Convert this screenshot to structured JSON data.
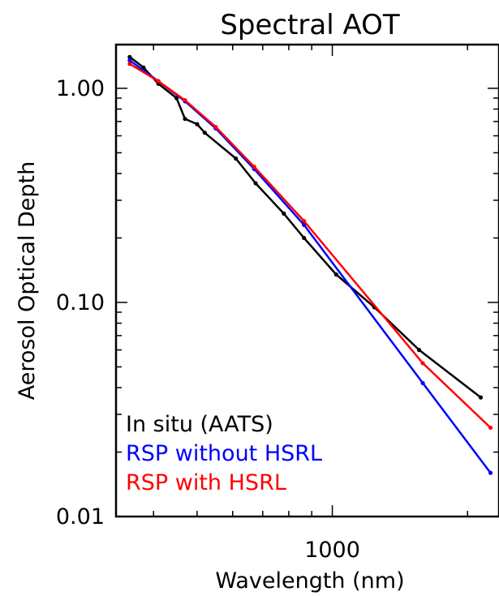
{
  "chart_data": {
    "type": "line",
    "title": "Spectral AOT",
    "xlabel": "Wavelength (nm)",
    "ylabel": "Aerosol Optical Depth",
    "x_scale": "log",
    "y_scale": "log",
    "xlim": [
      330,
      2350
    ],
    "ylim": [
      0.01,
      1.6
    ],
    "x_ticks": [
      {
        "value": 1000,
        "label": "1000"
      }
    ],
    "y_ticks": [
      {
        "value": 0.01,
        "label": "0.01"
      },
      {
        "value": 0.1,
        "label": "0.10"
      },
      {
        "value": 1.0,
        "label": "1.00"
      }
    ],
    "grid": false,
    "legend_position": "bottom-left",
    "series": [
      {
        "name": "In situ (AATS)",
        "color": "#000000",
        "x": [
          354,
          380,
          410,
          450,
          470,
          500,
          520,
          610,
          675,
          780,
          865,
          1020,
          1240,
          1560,
          2140
        ],
        "y": [
          1.4,
          1.25,
          1.05,
          0.9,
          0.72,
          0.68,
          0.62,
          0.47,
          0.36,
          0.26,
          0.2,
          0.135,
          0.095,
          0.06,
          0.036
        ]
      },
      {
        "name": "RSP without HSRL",
        "color": "#0000ff",
        "x": [
          354,
          410,
          470,
          550,
          670,
          865,
          1590,
          2250
        ],
        "y": [
          1.35,
          1.08,
          0.87,
          0.65,
          0.42,
          0.23,
          0.042,
          0.016
        ]
      },
      {
        "name": "RSP with HSRL",
        "color": "#ff0000",
        "x": [
          354,
          410,
          470,
          550,
          670,
          865,
          1590,
          2250
        ],
        "y": [
          1.3,
          1.08,
          0.88,
          0.66,
          0.43,
          0.24,
          0.052,
          0.026
        ]
      }
    ]
  }
}
